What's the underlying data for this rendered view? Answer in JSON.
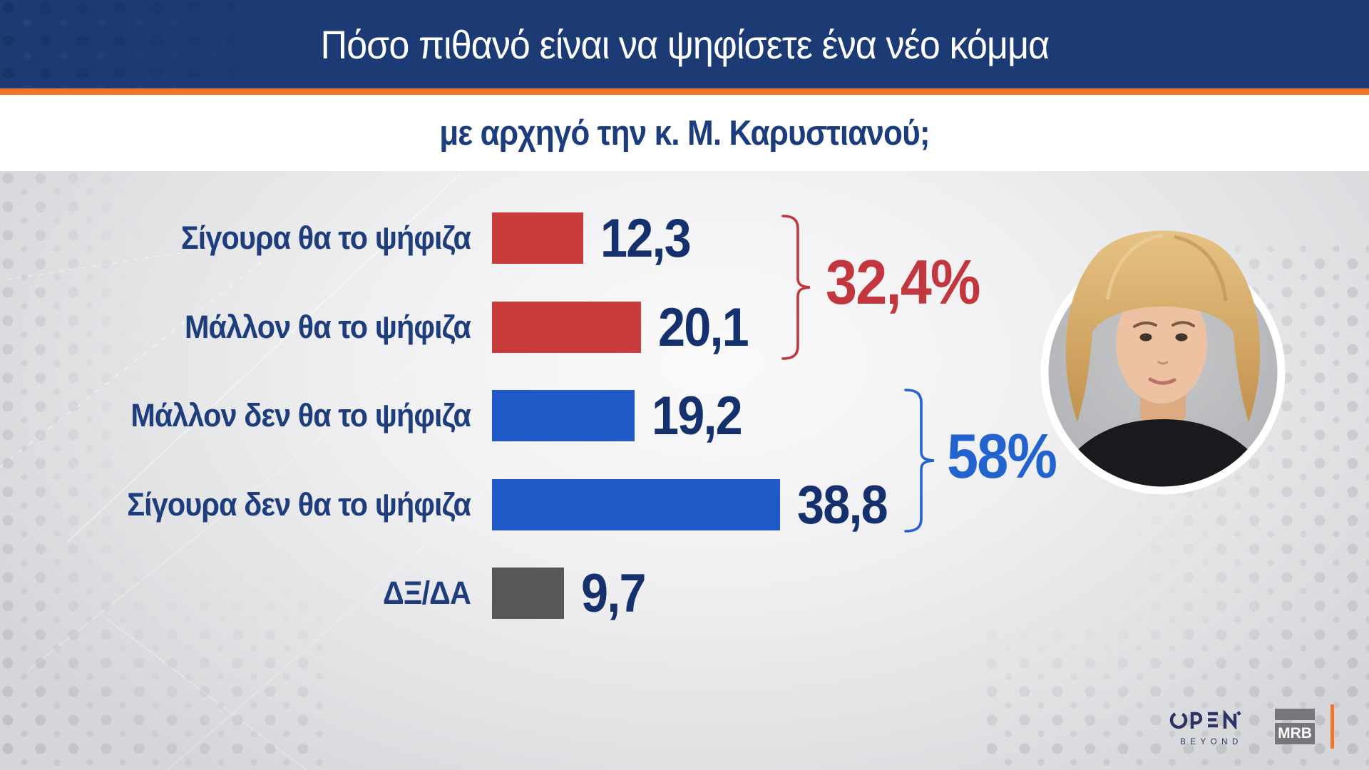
{
  "header": {
    "title": "Πόσο πιθανό είναι να ψηφίσετε ένα νέο κόμμα",
    "subtitle": "με αρχηγό την κ. Μ. Καρυστιανού;"
  },
  "chart_data": {
    "type": "bar",
    "orientation": "horizontal",
    "title": "Πόσο πιθανό είναι να ψηφίσετε ένα νέο κόμμα με αρχηγό την κ. Μ. Καρυστιανού;",
    "categories": [
      "Σίγουρα θα το ψήφιζα",
      "Μάλλον θα το ψήφιζα",
      "Μάλλον δεν θα το ψήφιζα",
      "Σίγουρα δεν θα το ψήφιζα",
      "ΔΞ/ΔΑ"
    ],
    "values": [
      12.3,
      20.1,
      19.2,
      38.8,
      9.7
    ],
    "value_labels": [
      "12,3",
      "20,1",
      "19,2",
      "38,8",
      "9,7"
    ],
    "bar_colors": [
      "#c93c3c",
      "#c93c3c",
      "#2059c8",
      "#2059c8",
      "#57575a"
    ],
    "xlim": [
      0,
      42
    ],
    "grid": false,
    "legend": "none",
    "groups": [
      {
        "label": "32,4%",
        "color": "#c2363d",
        "covers": [
          "Σίγουρα θα το ψήφιζα",
          "Μάλλον θα το ψήφιζα"
        ]
      },
      {
        "label": "58%",
        "color": "#2263cf",
        "covers": [
          "Μάλλον δεν θα το ψήφιζα",
          "Σίγουρα δεν θα το ψήφιζα"
        ]
      }
    ]
  },
  "footer": {
    "open": "OPEN",
    "beyond": "BEYOND",
    "mrb": "MRB"
  },
  "colors": {
    "header_bg": "#1c3a74",
    "accent_orange": "#f0762c",
    "label_navy": "#1e3d7c",
    "value_navy": "#15316d",
    "background": "#e2e3e5"
  }
}
